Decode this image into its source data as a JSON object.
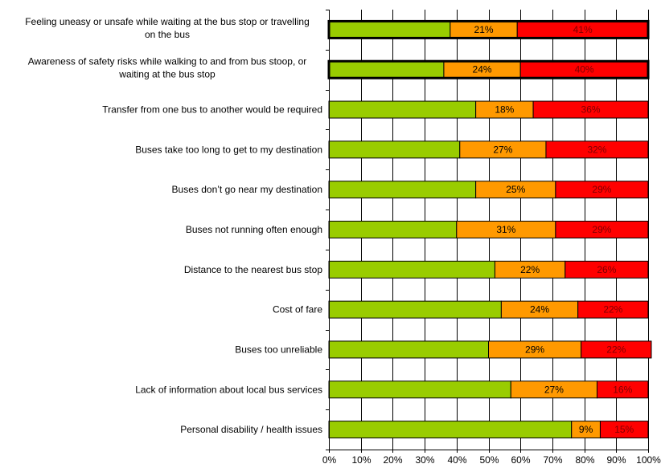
{
  "chart_data": {
    "type": "bar",
    "orientation": "horizontal",
    "stacked": true,
    "percent_stacked": true,
    "categories": [
      [
        "Feeling uneasy or unsafe while waiting at the bus stop or travelling",
        "on the bus"
      ],
      [
        "Awareness of safety risks while walking to and from bus stoop, or",
        "waiting at the bus stop"
      ],
      [
        "Transfer from one bus to another would be required"
      ],
      [
        "Buses take too long to get to my destination"
      ],
      [
        "Buses don’t go near my destination"
      ],
      [
        "Buses not running often enough"
      ],
      [
        "Distance to the nearest bus stop"
      ],
      [
        "Cost of fare"
      ],
      [
        "Buses too unreliable"
      ],
      [
        "Lack of information about local bus services"
      ],
      [
        "Personal disability / health issues"
      ]
    ],
    "series": [
      {
        "color": "#99cc00",
        "values": [
          38,
          36,
          46,
          41,
          46,
          40,
          52,
          54,
          50,
          57,
          76
        ],
        "labels": [
          "",
          "",
          "",
          "",
          "",
          "",
          "",
          "",
          "",
          "",
          ""
        ]
      },
      {
        "color": "#ff9900",
        "values": [
          21,
          24,
          18,
          27,
          25,
          31,
          22,
          24,
          29,
          27,
          9
        ],
        "labels": [
          "21%",
          "24%",
          "18%",
          "27%",
          "25%",
          "31%",
          "22%",
          "24%",
          "29%",
          "27%",
          "9%"
        ]
      },
      {
        "color": "#ff0000",
        "values": [
          41,
          40,
          36,
          32,
          29,
          29,
          26,
          22,
          22,
          16,
          15
        ],
        "labels": [
          "41%",
          "40%",
          "36%",
          "32%",
          "29%",
          "29%",
          "26%",
          "22%",
          "22%",
          "16%",
          "15%"
        ]
      }
    ],
    "highlighted": [
      true,
      true,
      false,
      false,
      false,
      false,
      false,
      false,
      false,
      false,
      false
    ],
    "x_ticks": [
      "0%",
      "10%",
      "20%",
      "30%",
      "40%",
      "50%",
      "60%",
      "70%",
      "80%",
      "90%",
      "100%"
    ],
    "xlim": [
      0,
      100
    ],
    "grid": true,
    "legend": "none"
  }
}
